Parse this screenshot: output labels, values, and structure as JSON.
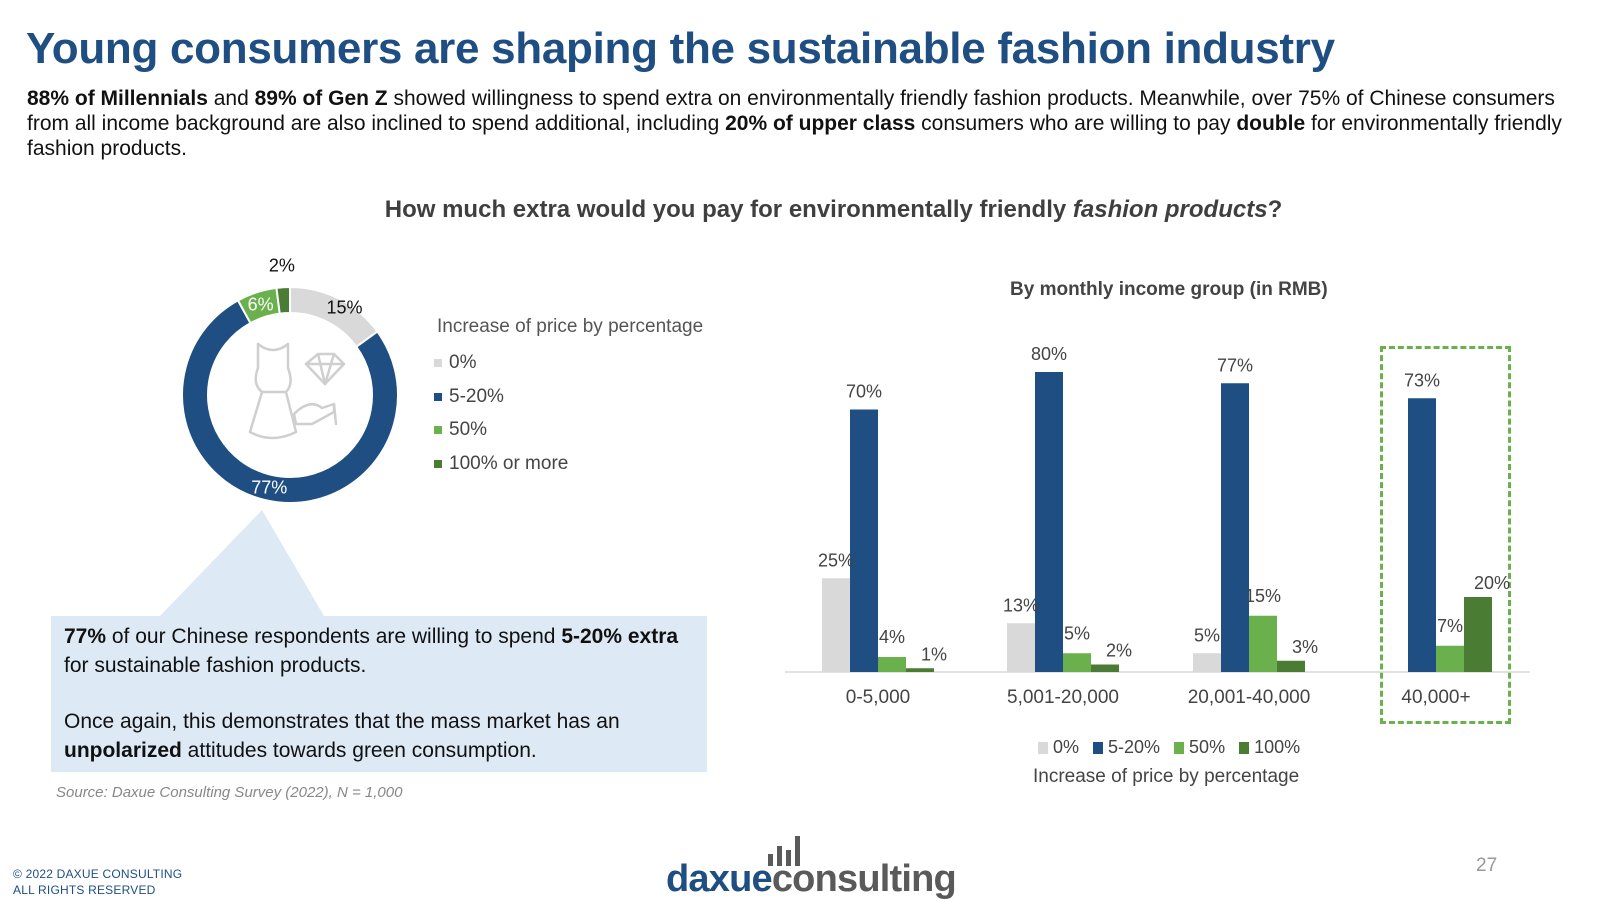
{
  "title": "Young consumers are shaping the sustainable fashion industry",
  "intro": {
    "p1": "88% of Millennials",
    "p2": " and ",
    "p3": "89% of Gen Z",
    "p4": " showed willingness to spend extra on environmentally friendly fashion products. Meanwhile, over 75% of Chinese consumers from all income background are also inclined to spend additional, including ",
    "p5": "20% of upper class",
    "p6": " consumers who are willing to pay ",
    "p7": "double",
    "p8": " for environmentally friendly fashion products."
  },
  "question": {
    "prefix": "How much extra would you pay for environmentally friendly ",
    "emph": "fashion products",
    "suffix": "?"
  },
  "donut_legend": {
    "title": "Increase of price by percentage",
    "items": [
      "0%",
      "5-20%",
      "50%",
      "100% or more"
    ]
  },
  "callout": {
    "b1": "77%",
    "t1": " of our Chinese respondents are willing to spend ",
    "b2": "5-20% extra",
    "t2": " for sustainable fashion products.",
    "t3": "Once again,  this demonstrates that the mass market has an ",
    "b3": "unpolarized",
    "t4": " attitudes towards green consumption."
  },
  "source": "Source: Daxue Consulting Survey (2022), N = 1,000",
  "bar_subtitle": "By monthly income group (in RMB)",
  "bar_legend": {
    "items": [
      "0%",
      "5-20%",
      "50%",
      "100%"
    ],
    "title": "Increase of price by percentage"
  },
  "colors": {
    "c0": "#d9d9d9",
    "c1": "#1f4e82",
    "c2": "#6ab04c",
    "c3": "#4a7c34",
    "title": "#1f4e82"
  },
  "icon": "clothing-accessories-icon",
  "copyright": {
    "line1": "© 2022 DAXUE CONSULTING",
    "line2": "ALL RIGHTS RESERVED"
  },
  "logo": {
    "part1": "daxue",
    "part2": "consulting"
  },
  "page_number": "27",
  "chart_data": [
    {
      "type": "pie",
      "variant": "donut",
      "labels": [
        "0%",
        "5-20%",
        "50%",
        "100% or more"
      ],
      "values": [
        15,
        77,
        6,
        2
      ],
      "value_labels": [
        "15%",
        "77%",
        "6%",
        "2%"
      ],
      "legend_title": "Increase of price by percentage"
    },
    {
      "type": "bar",
      "title": "By monthly income group (in RMB)",
      "categories": [
        "0-5,000",
        "5,001-20,000",
        "20,001-40,000",
        "40,000+"
      ],
      "series": [
        {
          "name": "0%",
          "values": [
            25,
            13,
            5,
            0
          ]
        },
        {
          "name": "5-20%",
          "values": [
            70,
            80,
            77,
            73
          ]
        },
        {
          "name": "50%",
          "values": [
            4,
            5,
            15,
            7
          ]
        },
        {
          "name": "100%",
          "values": [
            1,
            2,
            3,
            20
          ]
        }
      ],
      "value_labels": [
        [
          "25%",
          "13%",
          "5%",
          ""
        ],
        [
          "70%",
          "80%",
          "77%",
          "73%"
        ],
        [
          "4%",
          "5%",
          "15%",
          "7%"
        ],
        [
          "1%",
          "2%",
          "3%",
          "20%"
        ]
      ],
      "ylim": [
        0,
        80
      ],
      "xlabel": "Increase of price by percentage",
      "grid": false,
      "legend_placement": "bottom",
      "highlight_category": "40,000+"
    }
  ]
}
